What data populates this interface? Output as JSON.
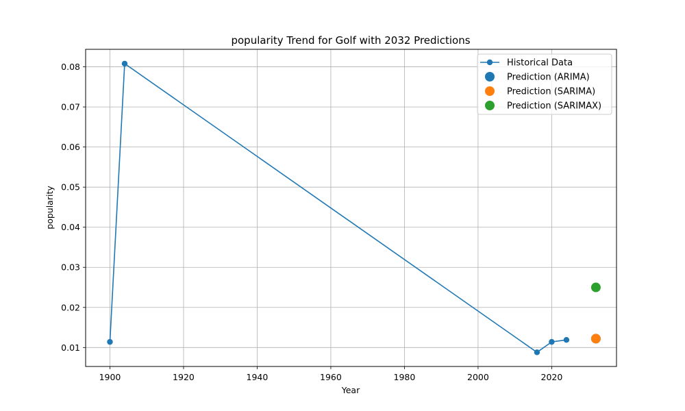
{
  "chart_data": {
    "type": "line",
    "title": "popularity Trend for Golf with 2032 Predictions",
    "xlabel": "Year",
    "ylabel": "popularity",
    "xlim": [
      1893.4,
      2037.6
    ],
    "ylim": [
      0.00527,
      0.08437
    ],
    "xticks": [
      1900,
      1920,
      1940,
      1960,
      1980,
      2000,
      2020
    ],
    "yticks": [
      0.01,
      0.02,
      0.03,
      0.04,
      0.05,
      0.06,
      0.07,
      0.08
    ],
    "ytick_labels": [
      "0.01",
      "0.02",
      "0.03",
      "0.04",
      "0.05",
      "0.06",
      "0.07",
      "0.08"
    ],
    "grid": true,
    "legend_position": "top-right",
    "series": [
      {
        "name": "Historical Data",
        "kind": "line",
        "color": "#1f77b4",
        "x": [
          1900,
          1904,
          2016,
          2020,
          2024
        ],
        "y": [
          0.0114,
          0.0808,
          0.0088,
          0.0114,
          0.0119
        ]
      },
      {
        "name": "Prediction (ARIMA)",
        "kind": "point",
        "color": "#1f77b4",
        "x": [
          2032
        ],
        "y": [
          0.0122
        ]
      },
      {
        "name": "Prediction (SARIMA)",
        "kind": "point",
        "color": "#ff7f0e",
        "x": [
          2032
        ],
        "y": [
          0.0122
        ]
      },
      {
        "name": "Prediction (SARIMAX)",
        "kind": "point",
        "color": "#2ca02c",
        "x": [
          2032
        ],
        "y": [
          0.025
        ]
      }
    ]
  }
}
